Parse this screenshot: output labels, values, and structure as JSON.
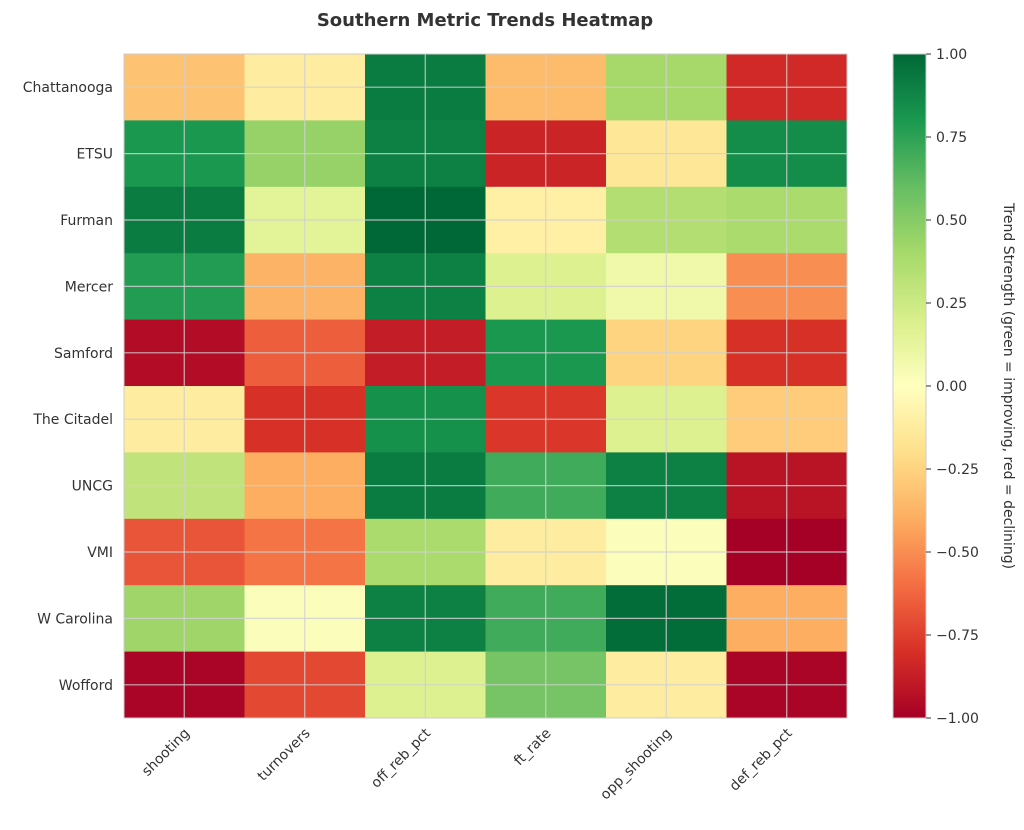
{
  "chart_data": {
    "type": "heatmap",
    "title": "Southern Metric Trends Heatmap",
    "xlabel": "",
    "ylabel": "",
    "columns": [
      "shooting",
      "turnovers",
      "off_reb_pct",
      "ft_rate",
      "opp_shooting",
      "def_reb_pct"
    ],
    "rows": [
      "Chattanooga",
      "ETSU",
      "Furman",
      "Mercer",
      "Samford",
      "The Citadel",
      "UNCG",
      "VMI",
      "W Carolina",
      "Wofford"
    ],
    "values": [
      [
        -0.32,
        -0.12,
        0.92,
        -0.35,
        0.4,
        -0.83
      ],
      [
        0.8,
        0.45,
        0.9,
        -0.85,
        -0.15,
        0.85
      ],
      [
        0.92,
        0.15,
        1.0,
        -0.1,
        0.35,
        0.38
      ],
      [
        0.78,
        -0.38,
        0.9,
        0.18,
        0.08,
        -0.5
      ],
      [
        -0.95,
        -0.65,
        -0.88,
        0.8,
        -0.25,
        -0.8
      ],
      [
        -0.12,
        -0.8,
        0.83,
        -0.78,
        0.18,
        -0.28
      ],
      [
        0.3,
        -0.4,
        0.92,
        0.7,
        0.9,
        -0.92
      ],
      [
        -0.68,
        -0.58,
        0.38,
        -0.12,
        0.02,
        -1.0
      ],
      [
        0.42,
        0.02,
        0.9,
        0.7,
        0.98,
        -0.4
      ],
      [
        -0.98,
        -0.72,
        0.18,
        0.55,
        -0.12,
        -0.98
      ]
    ],
    "colorbar": {
      "label": "Trend Strength (green = improving, red = declining)",
      "min": -1.0,
      "max": 1.0,
      "ticks": [
        "1.00",
        "0.75",
        "0.50",
        "0.25",
        "0.00",
        "−0.25",
        "−0.50",
        "−0.75",
        "−1.00"
      ],
      "tick_values": [
        1.0,
        0.75,
        0.5,
        0.25,
        0.0,
        -0.25,
        -0.5,
        -0.75,
        -1.0
      ]
    },
    "colormap": [
      "#a50026",
      "#d73027",
      "#f46d43",
      "#fdae61",
      "#fee08b",
      "#ffffbf",
      "#d9ef8b",
      "#a6d96a",
      "#66bd63",
      "#1a9850",
      "#006837"
    ],
    "grid": true
  }
}
